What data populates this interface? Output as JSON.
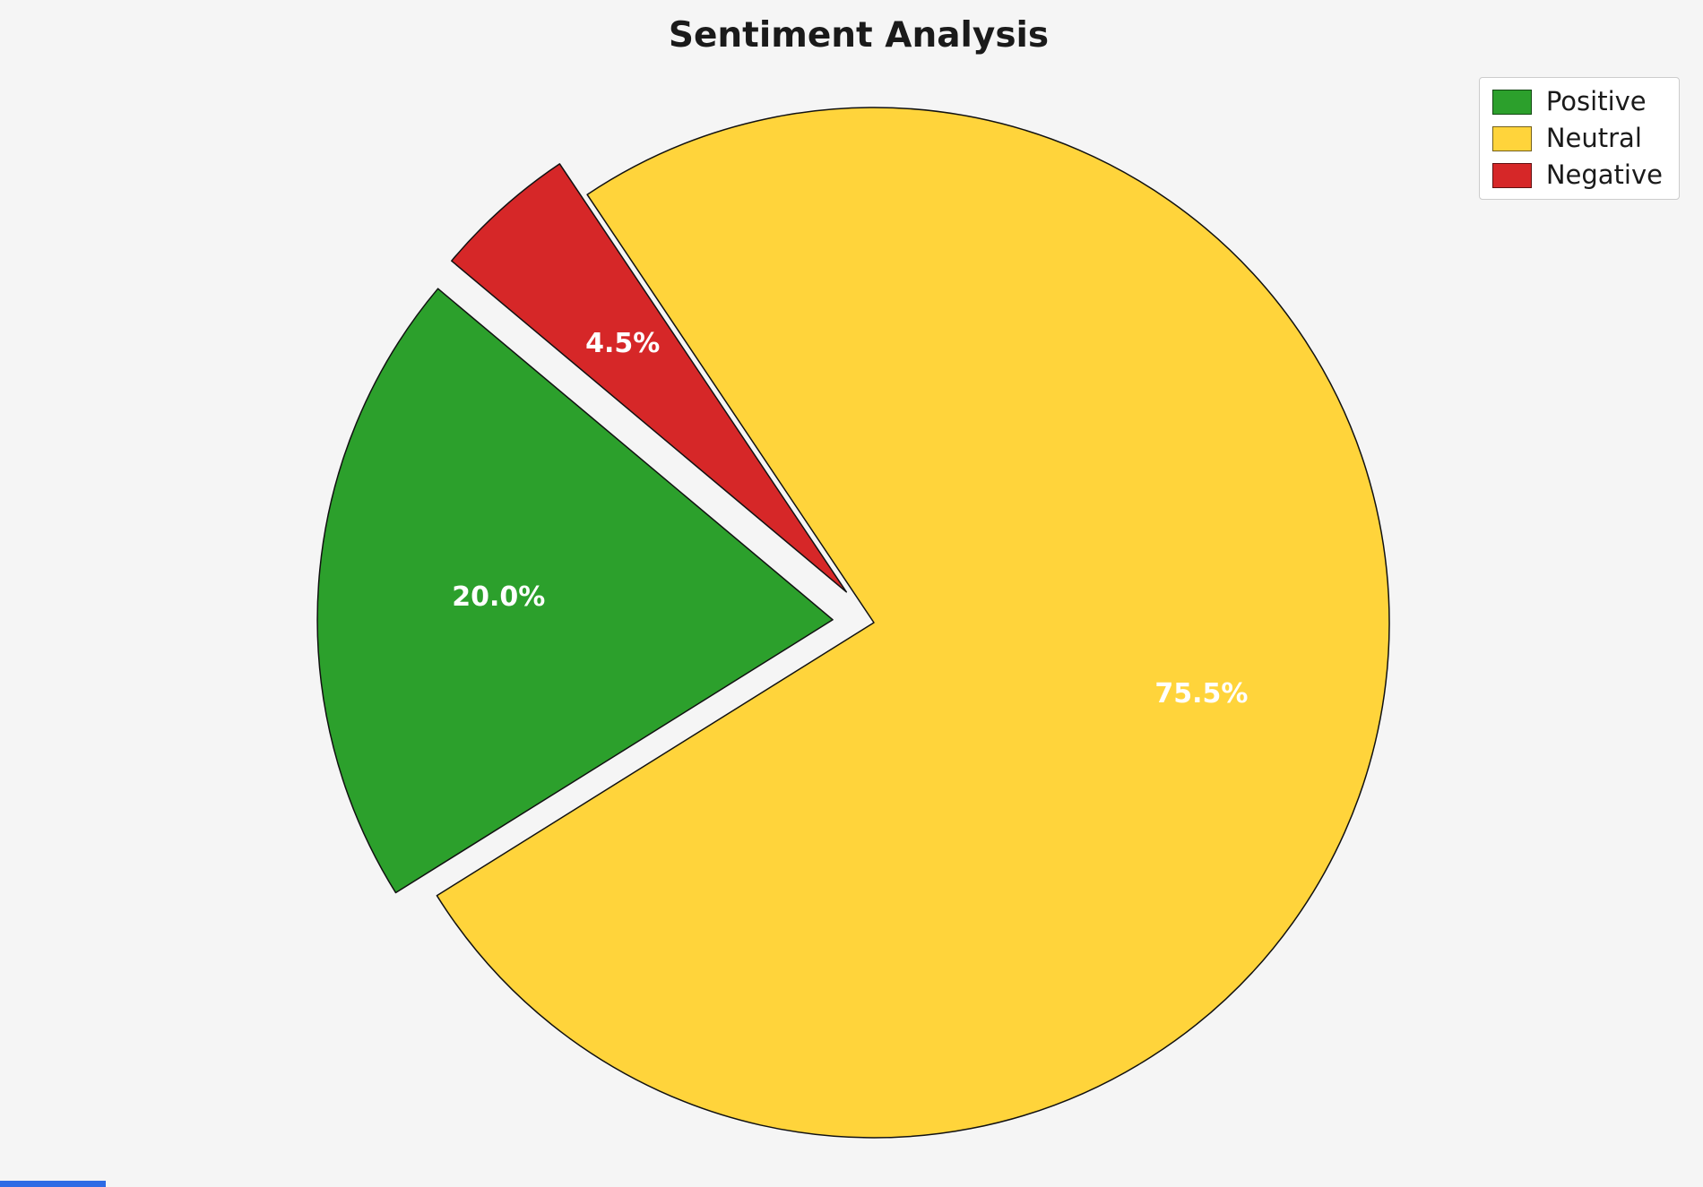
{
  "chart_data": {
    "type": "pie",
    "title": "Sentiment Analysis",
    "slices": [
      {
        "label": "Positive",
        "value": 20.0,
        "pct_label": "20.0%",
        "color": "#2ca02c",
        "explode": 0.08
      },
      {
        "label": "Neutral",
        "value": 75.5,
        "pct_label": "75.5%",
        "color": "#ffd43b",
        "explode": 0.0
      },
      {
        "label": "Negative",
        "value": 4.5,
        "pct_label": "4.5%",
        "color": "#d62728",
        "explode": 0.08
      }
    ],
    "start_angle": 140,
    "counterclockwise": true,
    "edge_color": "#111111",
    "pct_label_color": "#ffffff",
    "background": "#f5f5f5",
    "legend": {
      "position": "upper right",
      "labels": [
        "Positive",
        "Neutral",
        "Negative"
      ]
    }
  }
}
